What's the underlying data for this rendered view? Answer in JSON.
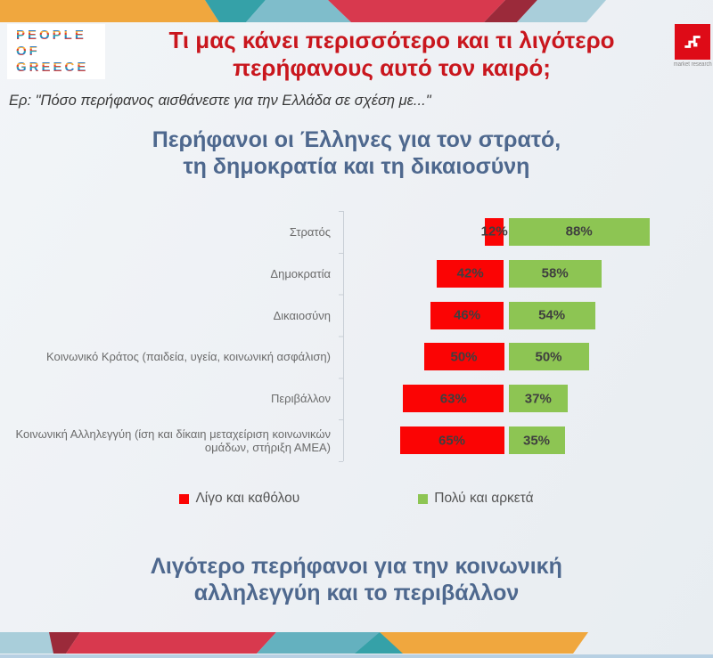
{
  "brand": {
    "logo_lines": [
      "PEOPLE",
      "OF",
      "GREECE"
    ],
    "agency_tagline": "market research",
    "agency_color": "#DE0B17"
  },
  "header": {
    "title_lines": [
      "Τι μας κάνει περισσότερο και τι λιγότερο",
      "περήφανους αυτό τον καιρό;"
    ]
  },
  "question": "Ερ: \"Πόσο περήφανος αισθάνεστε για την Ελλάδα σε σχέση με...\"",
  "chart_heading_lines": [
    "Περήφανοι οι Έλληνες για τον στρατό,",
    "τη δημοκρατία και τη δικαιοσύνη"
  ],
  "chart_data": {
    "type": "bar",
    "variant": "horizontal-diverging",
    "title": "Περήφανοι οι Έλληνες για τον στρατό, τη δημοκρατία και τη δικαιοσύνη",
    "categories": [
      "Στρατός",
      "Δημοκρατία",
      "Δικαιοσύνη",
      "Κοινωνικό Κράτος (παιδεία, υγεία, κοινωνική ασφάλιση)",
      "Περιβάλλον",
      "Κοινωνική Αλληλεγγύη (ίση και δίκαιη μεταχείριση κοινωνικών ομάδων, στήριξη ΑΜΕΑ)"
    ],
    "series": [
      {
        "name": "Λίγο και καθόλου",
        "color": "#FB0404",
        "values": [
          12,
          42,
          46,
          50,
          63,
          65
        ]
      },
      {
        "name": "Πολύ και αρκετά",
        "color": "#8DC553",
        "values": [
          88,
          58,
          54,
          50,
          37,
          35
        ]
      }
    ],
    "value_format": "percent",
    "xlim": [
      0,
      100
    ],
    "grid": false,
    "legend_position": "bottom"
  },
  "footer_heading_lines": [
    "Λιγότερο περήφανοι για την κοινωνική",
    "αλληλεγγύη και το περιβάλλον"
  ],
  "theme": {
    "title_red": "#C9161D",
    "heading_blue": "#4E688E",
    "axis_gray": "#C9CFD6",
    "band_colors": {
      "orange": "#F0A73E",
      "teal_dark": "#35A1A8",
      "teal_mid": "#64B1BF",
      "teal_light": "#7FBDCB",
      "crimson": "#D8394E",
      "maroon": "#9B2A3A",
      "pale_blue": "#A9CEDA",
      "bottom_strip": "#B7D0E3"
    }
  }
}
